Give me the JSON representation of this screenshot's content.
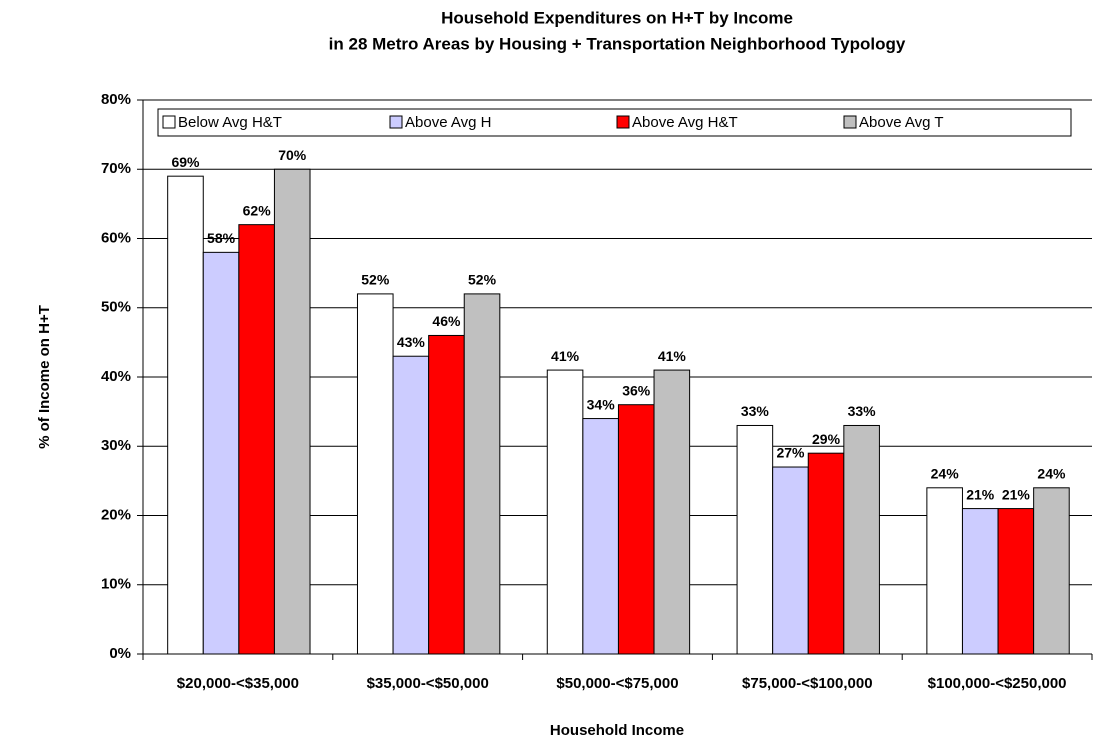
{
  "chart_data": {
    "type": "bar",
    "title": "Household Expenditures on H+T by Income",
    "subtitle": "in 28 Metro Areas by Housing + Transportation Neighborhood Typology",
    "x_label": "Household Income",
    "y_label": "% of Income on H+T",
    "categories": [
      "$20,000-<$35,000",
      "$35,000-<$50,000",
      "$50,000-<$75,000",
      "$75,000-<$100,000",
      "$100,000-<$250,000"
    ],
    "series": [
      {
        "name": "Below Avg H&T",
        "color": "#ffffff",
        "values": [
          69,
          52,
          41,
          33,
          24
        ],
        "value_labels": [
          "69%",
          "52%",
          "41%",
          "33%",
          "24%"
        ]
      },
      {
        "name": "Above Avg H",
        "color": "#ccccff",
        "values": [
          58,
          43,
          34,
          27,
          21
        ],
        "value_labels": [
          "58%",
          "43%",
          "34%",
          "27%",
          "21%"
        ]
      },
      {
        "name": "Above Avg H&T",
        "color": "#ff0000",
        "values": [
          62,
          46,
          36,
          29,
          21
        ],
        "value_labels": [
          "62%",
          "46%",
          "36%",
          "29%",
          "21%"
        ]
      },
      {
        "name": "Above Avg T",
        "color": "#c0c0c0",
        "values": [
          70,
          52,
          41,
          33,
          24
        ],
        "value_labels": [
          "70%",
          "52%",
          "41%",
          "33%",
          "24%"
        ]
      }
    ],
    "ylim": [
      0,
      80
    ],
    "yticks": [
      {
        "value": 0,
        "label": "0%"
      },
      {
        "value": 10,
        "label": "10%"
      },
      {
        "value": 20,
        "label": "20%"
      },
      {
        "value": 30,
        "label": "30%"
      },
      {
        "value": 40,
        "label": "40%"
      },
      {
        "value": 50,
        "label": "50%"
      },
      {
        "value": 60,
        "label": "60%"
      },
      {
        "value": 70,
        "label": "70%"
      },
      {
        "value": 80,
        "label": "80%"
      }
    ],
    "grid": true,
    "legend": "top"
  }
}
